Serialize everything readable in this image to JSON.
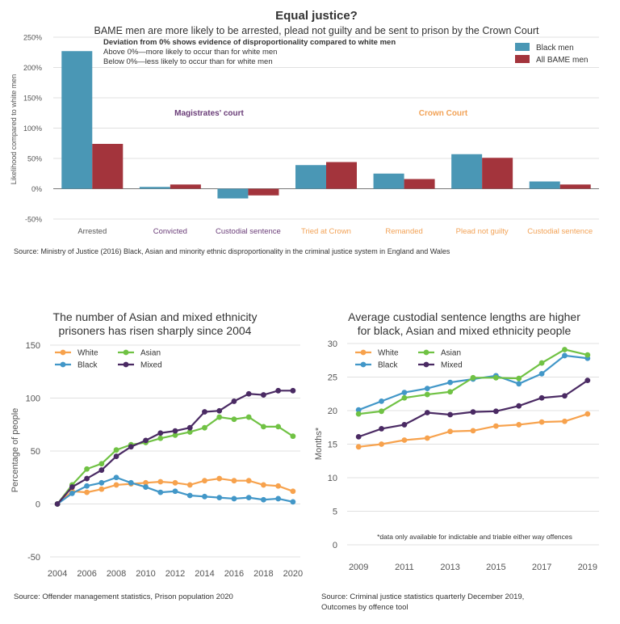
{
  "colors": {
    "black_men": "#4a97b5",
    "all_bame": "#a3343c",
    "magistrates": "#6a3d78",
    "crown": "#f2a256",
    "white": "#f7a24d",
    "asian": "#70c244",
    "black": "#4297c8",
    "mixed": "#4a2a63",
    "grid": "#d6d6d6",
    "axis_text": "#555555"
  },
  "header": {
    "title": "Equal justice?",
    "subtitle": "BAME men are more likely to be arrested, plead not guilty and be sent to prison by the Crown Court"
  },
  "chart_data": [
    {
      "type": "bar",
      "title": "Equal justice?",
      "subtitle": "BAME men are more likely to be arrested, plead not guilty and be sent to prison by the Crown Court",
      "ylabel": "Likelihood compared to white men",
      "ylim": [
        -50,
        250
      ],
      "yticks": [
        -50,
        0,
        50,
        100,
        150,
        200,
        250
      ],
      "ytick_labels": [
        "-50%",
        "0%",
        "50%",
        "100%",
        "150%",
        "200%",
        "250%"
      ],
      "categories": [
        "Arrested",
        "Convicted",
        "Custodial sentence",
        "Tried at Crown",
        "Remanded",
        "Plead not guilty",
        "Custodial sentence"
      ],
      "category_groups": [
        "magistrates",
        "magistrates",
        "magistrates",
        "crown",
        "crown",
        "crown",
        "crown"
      ],
      "group_labels": {
        "magistrates": "Magistrates' court",
        "crown": "Crown Court"
      },
      "series": [
        {
          "name": "Black men",
          "values": [
            227,
            3,
            -16,
            39,
            25,
            57,
            12
          ]
        },
        {
          "name": "All BAME men",
          "values": [
            74,
            7,
            -11,
            44,
            16,
            51,
            7
          ]
        }
      ],
      "annotation": {
        "heading": "Deviation from 0% shows evidence of disproportionality compared to white men",
        "line1": "Above 0%—more likely to occur than for white men",
        "line2": "Below 0%—less likely to occur than for white men"
      },
      "legend": "top-right",
      "source": "Source: Ministry of Justice (2016) Black, Asian and minority ethnic disproportionality in the criminal justice system in England and Wales"
    },
    {
      "type": "line",
      "title_line1": "The number of Asian and mixed ethnicity",
      "title_line2": "prisoners has risen sharply since 2004",
      "ylabel": "Percentage of people",
      "xlabel": "",
      "ylim": [
        -50,
        150
      ],
      "yticks": [
        -50,
        0,
        50,
        100,
        150
      ],
      "xlim": [
        2003.5,
        2020.5
      ],
      "xticks": [
        2004,
        2006,
        2008,
        2010,
        2012,
        2014,
        2016,
        2018,
        2020
      ],
      "x": [
        2004,
        2005,
        2006,
        2007,
        2008,
        2009,
        2010,
        2011,
        2012,
        2013,
        2014,
        2015,
        2016,
        2017,
        2018,
        2019,
        2020
      ],
      "series": [
        {
          "name": "White",
          "color_key": "white",
          "values": [
            0,
            12,
            11,
            14,
            18,
            19,
            20,
            21,
            20,
            18,
            22,
            24,
            22,
            22,
            18,
            17,
            12
          ]
        },
        {
          "name": "Black",
          "color_key": "black",
          "values": [
            0,
            10,
            17,
            20,
            25,
            20,
            16,
            11,
            12,
            8,
            7,
            6,
            5,
            6,
            4,
            5,
            2
          ]
        },
        {
          "name": "Asian",
          "color_key": "asian",
          "values": [
            0,
            18,
            33,
            38,
            51,
            56,
            58,
            62,
            65,
            68,
            72,
            82,
            80,
            82,
            73,
            73,
            64
          ]
        },
        {
          "name": "Mixed",
          "color_key": "mixed",
          "values": [
            0,
            16,
            24,
            32,
            45,
            54,
            60,
            67,
            69,
            72,
            87,
            88,
            97,
            104,
            103,
            107,
            107
          ]
        }
      ],
      "legend": "top-left",
      "source": "Source: Offender management statistics, Prison population 2020"
    },
    {
      "type": "line",
      "title_line1": "Average custodial sentence lengths are higher",
      "title_line2": "for black, Asian and mixed ethnicity people",
      "ylabel": "Months*",
      "xlabel": "",
      "ylim": [
        0,
        30
      ],
      "yticks": [
        0,
        5,
        10,
        15,
        20,
        25,
        30
      ],
      "xlim": [
        2008.5,
        2019.5
      ],
      "xticks": [
        2009,
        2011,
        2013,
        2015,
        2017,
        2019
      ],
      "x": [
        2009,
        2010,
        2011,
        2012,
        2013,
        2014,
        2015,
        2016,
        2017,
        2018,
        2019
      ],
      "series": [
        {
          "name": "White",
          "color_key": "white",
          "values": [
            14.6,
            15.0,
            15.6,
            15.9,
            16.9,
            17.0,
            17.7,
            17.9,
            18.3,
            18.4,
            19.5
          ]
        },
        {
          "name": "Black",
          "color_key": "black",
          "values": [
            20.1,
            21.4,
            22.7,
            23.3,
            24.2,
            24.7,
            25.2,
            24.0,
            25.5,
            28.2,
            27.8
          ]
        },
        {
          "name": "Asian",
          "color_key": "asian",
          "values": [
            19.5,
            19.9,
            21.9,
            22.4,
            22.8,
            24.9,
            24.9,
            24.8,
            27.1,
            29.1,
            28.3
          ]
        },
        {
          "name": "Mixed",
          "color_key": "mixed",
          "values": [
            16.1,
            17.3,
            17.9,
            19.7,
            19.4,
            19.8,
            19.9,
            20.7,
            21.9,
            22.2,
            24.5
          ]
        }
      ],
      "footnote": "*data only available for indictable and triable either way offences",
      "legend": "top-left",
      "source_line1": "Source: Criminal justice statistics quarterly December 2019,",
      "source_line2": "Outcomes by offence tool"
    }
  ]
}
